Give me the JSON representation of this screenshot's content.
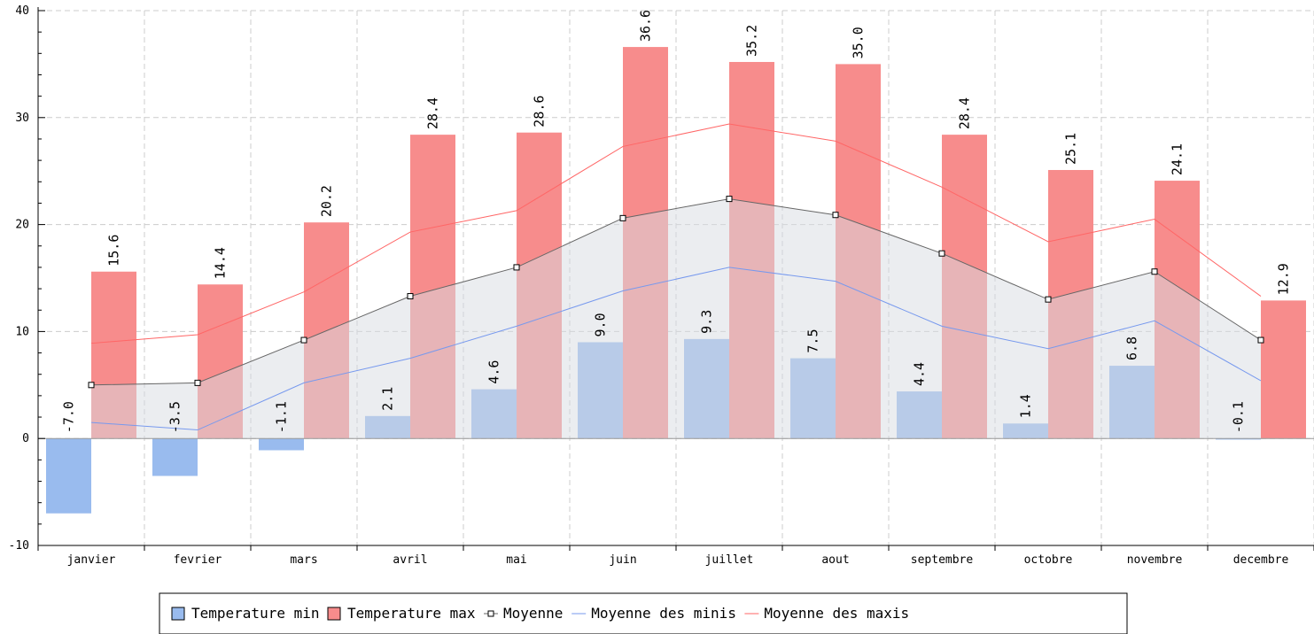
{
  "chart_data": {
    "type": "bar",
    "categories": [
      "janvier",
      "fevrier",
      "mars",
      "avril",
      "mai",
      "juin",
      "juillet",
      "aout",
      "septembre",
      "octobre",
      "novembre",
      "decembre"
    ],
    "ylim": [
      -10,
      40
    ],
    "yticks": [
      -10,
      0,
      10,
      20,
      30,
      40
    ],
    "grid": true,
    "legend_position": "bottom-center",
    "series": [
      {
        "name": "Temperature min",
        "kind": "bar",
        "color": "#99bbee",
        "values": [
          -7.0,
          -3.5,
          -1.1,
          2.1,
          4.6,
          9.0,
          9.3,
          7.5,
          4.4,
          1.4,
          6.8,
          -0.1
        ],
        "labels": [
          "-7.0",
          "-3.5",
          "-1.1",
          "2.1",
          "4.6",
          "9.0",
          "9.3",
          "7.5",
          "4.4",
          "1.4",
          "6.8",
          "-0.1"
        ]
      },
      {
        "name": "Temperature max",
        "kind": "bar",
        "color": "#f78c8c",
        "values": [
          15.6,
          14.4,
          20.2,
          28.4,
          28.6,
          36.6,
          35.2,
          35.0,
          28.4,
          25.1,
          24.1,
          12.9
        ],
        "labels": [
          "15.6",
          "14.4",
          "20.2",
          "28.4",
          "28.6",
          "36.6",
          "35.2",
          "35.0",
          "28.4",
          "25.1",
          "24.1",
          "12.9"
        ]
      },
      {
        "name": "Moyenne",
        "kind": "area-line",
        "color": "#666666",
        "values": [
          5.0,
          5.2,
          9.2,
          13.3,
          16.0,
          20.6,
          22.4,
          20.9,
          17.3,
          13.0,
          15.6,
          9.2
        ]
      },
      {
        "name": "Moyenne des minis",
        "kind": "line",
        "color": "#7799ee",
        "values": [
          1.5,
          0.8,
          5.2,
          7.5,
          10.5,
          13.8,
          16.0,
          14.7,
          10.5,
          8.4,
          11.0,
          5.4
        ]
      },
      {
        "name": "Moyenne des maxis",
        "kind": "line",
        "color": "#ff6666",
        "values": [
          8.9,
          9.7,
          13.7,
          19.3,
          21.3,
          27.3,
          29.4,
          27.8,
          23.5,
          18.4,
          20.5,
          13.3
        ]
      }
    ]
  }
}
